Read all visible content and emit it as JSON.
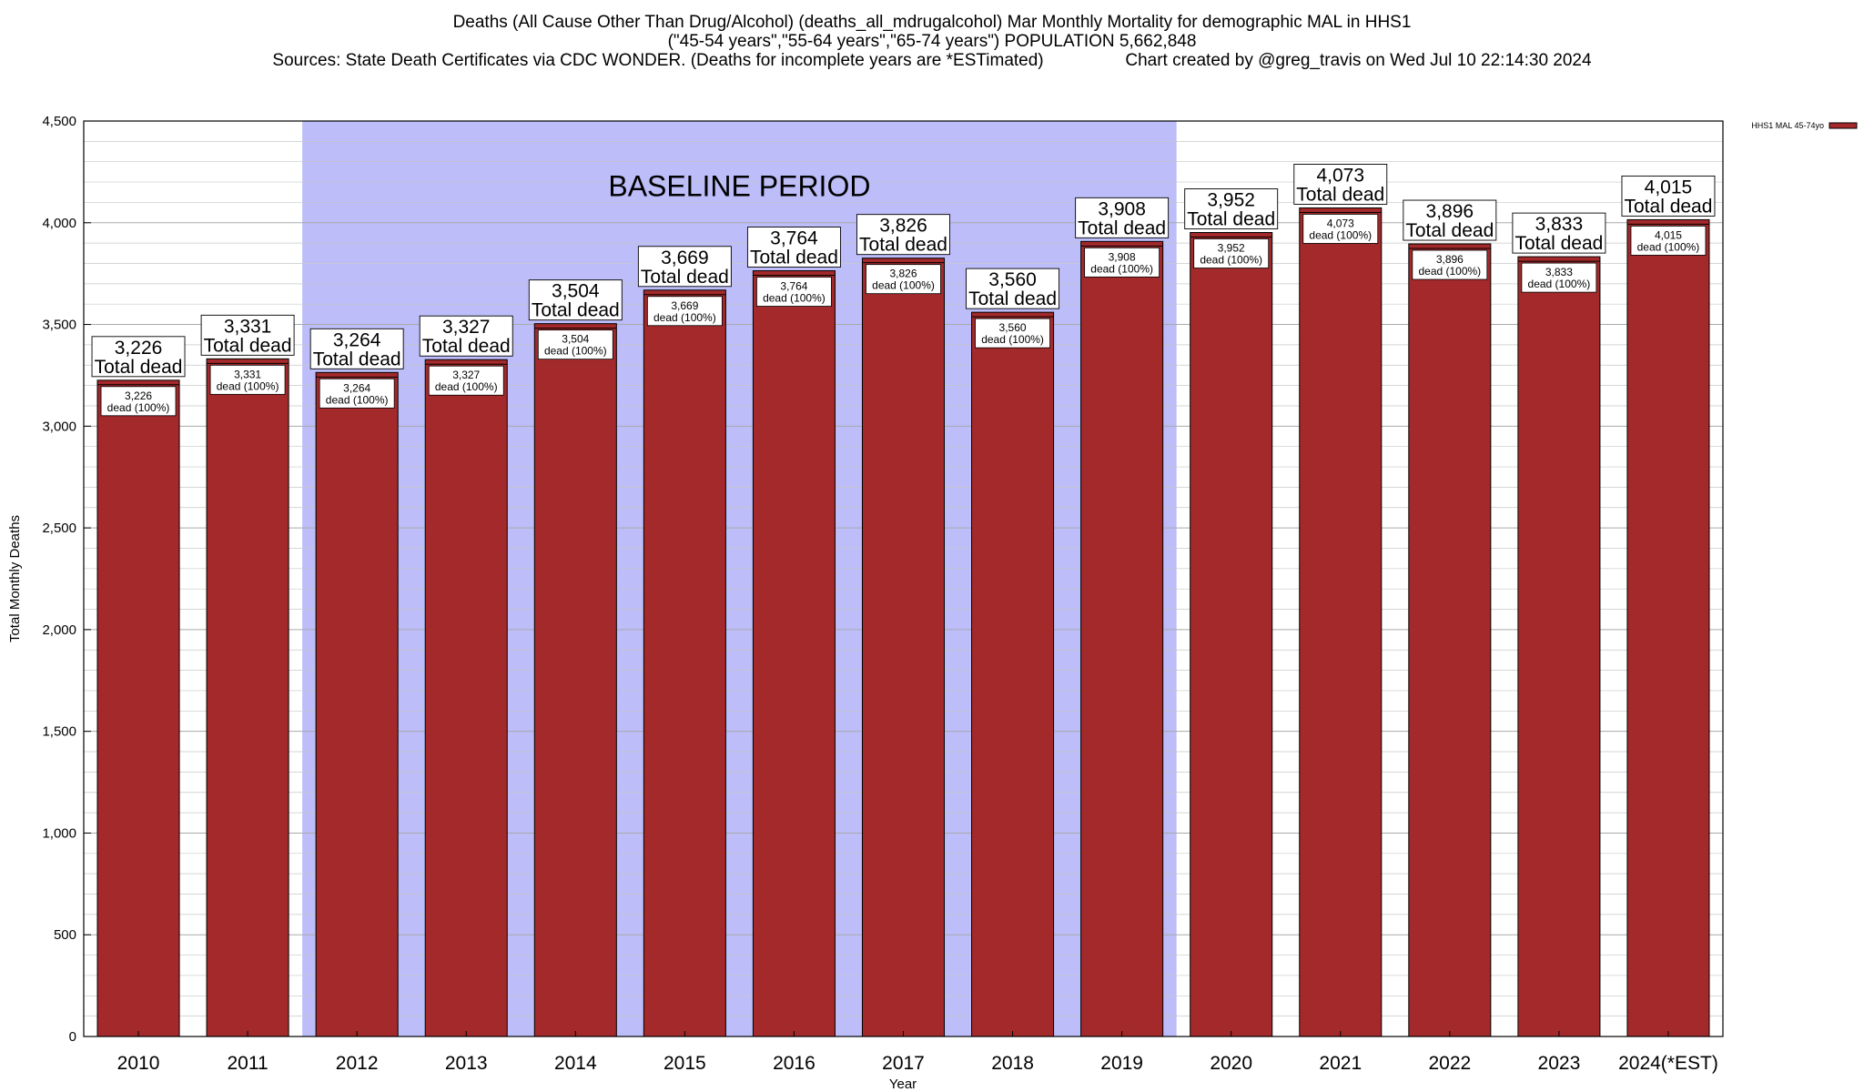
{
  "header": {
    "title_line1": "Deaths (All Cause Other Than Drug/Alcohol) (deaths_all_mdrugalcohol) Mar Monthly Mortality for demographic MAL in HHS1",
    "title_line2": "(\"45-54 years\",\"55-64 years\",\"65-74 years\") POPULATION 5,662,848",
    "title_line3": "Sources: State Death Certificates via CDC WONDER. (Deaths for incomplete years are *ESTimated)                 Chart created by @greg_travis on Wed Jul 10 22:14:30 2024"
  },
  "chart_data": {
    "type": "bar",
    "categories": [
      "2010",
      "2011",
      "2012",
      "2013",
      "2014",
      "2015",
      "2016",
      "2017",
      "2018",
      "2019",
      "2020",
      "2021",
      "2022",
      "2023",
      "2024(*EST)"
    ],
    "series": [
      {
        "name": "HHS1 MAL 45-74yo",
        "values": [
          3226,
          3331,
          3264,
          3327,
          3504,
          3669,
          3764,
          3826,
          3560,
          3908,
          3952,
          4073,
          3896,
          3833,
          4015
        ]
      }
    ],
    "value_labels": [
      "3,226",
      "3,331",
      "3,264",
      "3,327",
      "3,504",
      "3,669",
      "3,764",
      "3,826",
      "3,560",
      "3,908",
      "3,952",
      "4,073",
      "3,896",
      "3,833",
      "4,015"
    ],
    "total_label": "Total dead",
    "segment_label": "dead (100%)",
    "xlabel": "Year",
    "ylabel": "Total Monthly Deaths",
    "ylim": [
      0,
      4500
    ],
    "yticks": [
      0,
      500,
      1000,
      1500,
      2000,
      2500,
      3000,
      3500,
      4000,
      4500
    ],
    "ytick_labels": [
      "0",
      "500",
      "1,000",
      "1,500",
      "2,000",
      "2,500",
      "3,000",
      "3,500",
      "4,000",
      "4,500"
    ],
    "minor_grid_step": 100,
    "grid": true,
    "legend_position": "top-right",
    "baseline_period": {
      "label": "BASELINE PERIOD",
      "from": "2012",
      "to": "2019"
    },
    "colors": {
      "bar": "#a3292b",
      "baseline": "#bcbdf9",
      "grid": "#c8c8c8"
    }
  }
}
